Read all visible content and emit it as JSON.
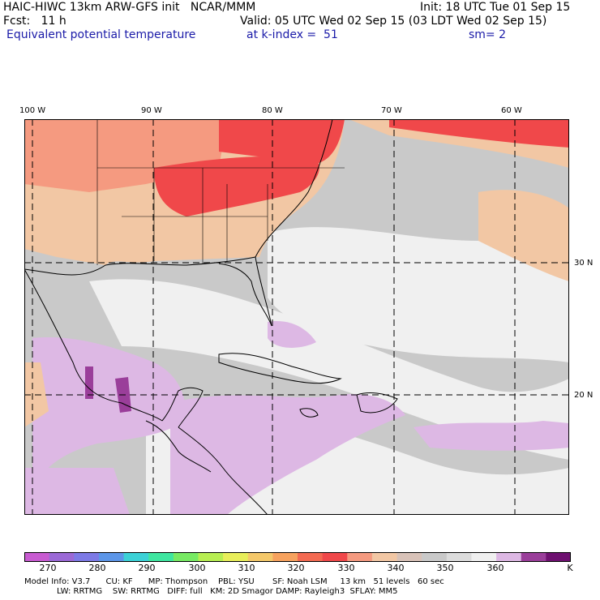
{
  "header": {
    "left_line1": "HAIC-HIWC 13km ARW-GFS init   NCAR/MMM",
    "right_line1": "Init: 18 UTC Tue 01 Sep 15",
    "left_line2": "Fcst:   11 h",
    "right_line2": "Valid: 05 UTC Wed 02 Sep 15 (03 LDT Wed 02 Sep 15)",
    "field": "Equivalent potential temperature",
    "level": "at k-index =  51",
    "smooth": "sm= 2"
  },
  "axes": {
    "lon_labels": [
      "100 W",
      "90 W",
      "80 W",
      "70 W",
      "60 W"
    ],
    "lat_labels": [
      "30 N",
      "20 N"
    ]
  },
  "colorbar": {
    "units": "K",
    "tick_labels": [
      "270",
      "280",
      "290",
      "300",
      "310",
      "320",
      "330",
      "340",
      "350",
      "360"
    ],
    "colors": [
      "#c85bd1",
      "#9b69d6",
      "#7d7ae6",
      "#5c96e8",
      "#3bd1d6",
      "#3ee6a0",
      "#77ea63",
      "#b7ee52",
      "#e8ee5a",
      "#f4c86a",
      "#f7a25e",
      "#f36a52",
      "#f0484a",
      "#f59a80",
      "#f2c7a4",
      "#d8c2b8",
      "#c9c9c9",
      "#dcdcdc",
      "#f0f0f0",
      "#ddb8e4",
      "#9a3e9a",
      "#6e1070"
    ]
  },
  "footer": {
    "line1": "Model Info: V3.7      CU: KF      MP: Thompson    PBL: YSU       SF: Noah LSM     13 km   51 levels   60 sec",
    "line2": "LW: RRTMG    SW: RRTMG   DIFF: full   KM: 2D Smagor DAMP: Rayleigh3  SFLAY: MM5"
  },
  "map_colors": {
    "hot": "#f0484a",
    "warm": "#f59a80",
    "mild": "#f2c7a4",
    "grey": "#c9c9c9",
    "light": "#f0f0f0",
    "lilac": "#ddb8e4",
    "purple": "#9a3e9a"
  }
}
